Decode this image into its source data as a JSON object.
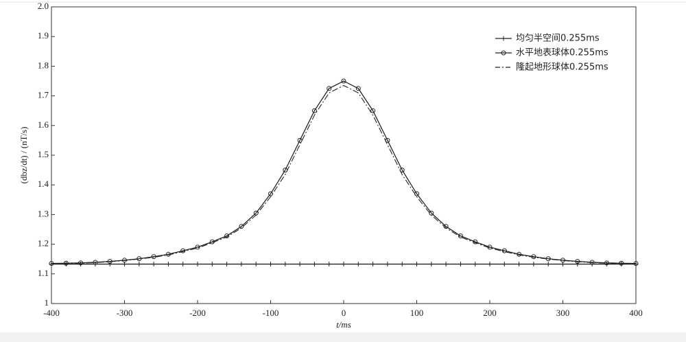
{
  "chart_data": {
    "type": "line",
    "xlabel": "t/ms",
    "ylabel": "(dbz/dt) / (nT/s)",
    "x": [
      -400,
      -380,
      -360,
      -340,
      -320,
      -300,
      -280,
      -260,
      -240,
      -220,
      -200,
      -180,
      -160,
      -140,
      -120,
      -100,
      -80,
      -60,
      -40,
      -20,
      0,
      20,
      40,
      60,
      80,
      100,
      120,
      140,
      160,
      180,
      200,
      220,
      240,
      260,
      280,
      300,
      320,
      340,
      360,
      380,
      400
    ],
    "series": [
      {
        "name": "均匀半空间0.255ms",
        "color": "#222222",
        "marker": "plus",
        "dash": false,
        "values": [
          1.133,
          1.133,
          1.133,
          1.133,
          1.133,
          1.133,
          1.133,
          1.133,
          1.133,
          1.133,
          1.133,
          1.133,
          1.133,
          1.133,
          1.133,
          1.133,
          1.133,
          1.133,
          1.133,
          1.133,
          1.133,
          1.133,
          1.133,
          1.133,
          1.133,
          1.133,
          1.133,
          1.133,
          1.133,
          1.133,
          1.133,
          1.133,
          1.133,
          1.133,
          1.133,
          1.133,
          1.133,
          1.133,
          1.133,
          1.133,
          1.133
        ]
      },
      {
        "name": "水平地表球体0.255ms",
        "color": "#222222",
        "marker": "circle",
        "dash": false,
        "values": [
          1.135,
          1.136,
          1.137,
          1.139,
          1.142,
          1.146,
          1.151,
          1.158,
          1.166,
          1.178,
          1.19,
          1.208,
          1.228,
          1.26,
          1.305,
          1.37,
          1.45,
          1.55,
          1.65,
          1.725,
          1.75,
          1.725,
          1.65,
          1.55,
          1.45,
          1.37,
          1.305,
          1.26,
          1.228,
          1.208,
          1.19,
          1.178,
          1.166,
          1.158,
          1.151,
          1.146,
          1.142,
          1.139,
          1.137,
          1.136,
          1.135
        ]
      },
      {
        "name": "隆起地形球体0.255ms",
        "color": "#222222",
        "marker": null,
        "dash": true,
        "values": [
          1.135,
          1.135,
          1.136,
          1.138,
          1.141,
          1.145,
          1.15,
          1.156,
          1.164,
          1.175,
          1.187,
          1.205,
          1.224,
          1.255,
          1.298,
          1.36,
          1.435,
          1.535,
          1.635,
          1.71,
          1.735,
          1.71,
          1.635,
          1.535,
          1.435,
          1.36,
          1.298,
          1.255,
          1.224,
          1.205,
          1.187,
          1.175,
          1.164,
          1.156,
          1.15,
          1.145,
          1.141,
          1.138,
          1.136,
          1.135,
          1.135
        ]
      }
    ],
    "xlim": [
      -400,
      400
    ],
    "ylim": [
      1,
      2
    ],
    "xticks": [
      -400,
      -300,
      -200,
      -100,
      0,
      100,
      200,
      300,
      400
    ],
    "yticks": [
      {
        "value": 2,
        "label": "2.0"
      },
      {
        "value": 1.9,
        "label": "1.9"
      },
      {
        "value": 1.8,
        "label": "1.8"
      },
      {
        "value": 1.7,
        "label": "1.7"
      },
      {
        "value": 1.6,
        "label": "1.6"
      },
      {
        "value": 1.5,
        "label": "1.5"
      },
      {
        "value": 1.4,
        "label": "1.4"
      },
      {
        "value": 1.3,
        "label": "1.3"
      },
      {
        "value": 1.2,
        "label": "1.2"
      },
      {
        "value": 1.1,
        "label": "1.1"
      },
      1
    ],
    "legend": "upper right"
  }
}
